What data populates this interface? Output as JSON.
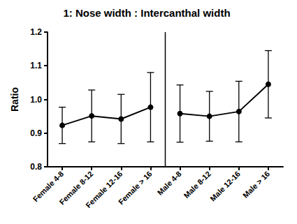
{
  "chart_data": {
    "type": "line",
    "title": "1: Nose width : Intercanthal width",
    "y_label": "Ratio",
    "categories": [
      "Female 4-8",
      "Female 8-12",
      "Female 12-16",
      "Female > 16",
      "Male 4-8",
      "Male 8-12",
      "Male 12-16",
      "Male > 16"
    ],
    "series": [
      {
        "color": "#000000",
        "marker": "circle",
        "values": [
          0.923,
          0.951,
          0.942,
          0.977,
          null,
          null,
          null,
          null
        ],
        "errors": [
          0.054,
          0.077,
          0.073,
          0.103,
          null,
          null,
          null,
          null
        ]
      },
      {
        "color": "#000000",
        "marker": "circle",
        "values": [
          null,
          null,
          null,
          null,
          0.958,
          0.95,
          0.964,
          1.045
        ],
        "errors": [
          null,
          null,
          null,
          null,
          0.085,
          0.074,
          0.09,
          0.1
        ]
      }
    ],
    "ylim": [
      0.8,
      1.2
    ],
    "yticks": [
      0.8,
      0.9,
      {
        "value": 1,
        "label": "1.0"
      },
      1.1,
      1.2
    ],
    "grid": false
  }
}
